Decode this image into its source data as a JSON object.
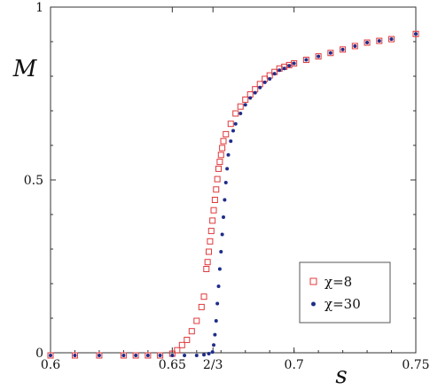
{
  "chart_data": {
    "type": "scatter",
    "xlabel": "s",
    "ylabel": "M",
    "xlim": [
      0.6,
      0.75
    ],
    "ylim": [
      0,
      1
    ],
    "x_ticks": [
      {
        "value": 0.6,
        "label": "0.6"
      },
      {
        "value": 0.65,
        "label": "0.65"
      },
      {
        "value": 0.6667,
        "label": "2/3"
      },
      {
        "value": 0.7,
        "label": "0.7"
      },
      {
        "value": 0.75,
        "label": "0.75"
      }
    ],
    "y_ticks": [
      {
        "value": 0,
        "label": "0"
      },
      {
        "value": 0.5,
        "label": "0.5"
      },
      {
        "value": 1,
        "label": "1"
      }
    ],
    "legend": {
      "placement": "bottom-right"
    },
    "series": [
      {
        "name": "χ=8",
        "marker": "square-open",
        "color": "#e0383a",
        "points": [
          [
            0.6,
            0.0
          ],
          [
            0.61,
            0.0
          ],
          [
            0.62,
            0.0
          ],
          [
            0.63,
            0.0
          ],
          [
            0.635,
            0.0
          ],
          [
            0.64,
            0.0
          ],
          [
            0.645,
            0.0
          ],
          [
            0.65,
            0.005
          ],
          [
            0.652,
            0.015
          ],
          [
            0.654,
            0.03
          ],
          [
            0.656,
            0.045
          ],
          [
            0.658,
            0.07
          ],
          [
            0.66,
            0.1
          ],
          [
            0.662,
            0.14
          ],
          [
            0.663,
            0.17
          ],
          [
            0.664,
            0.25
          ],
          [
            0.6645,
            0.27
          ],
          [
            0.665,
            0.3
          ],
          [
            0.6655,
            0.33
          ],
          [
            0.666,
            0.36
          ],
          [
            0.6665,
            0.39
          ],
          [
            0.667,
            0.42
          ],
          [
            0.6675,
            0.45
          ],
          [
            0.668,
            0.48
          ],
          [
            0.6685,
            0.51
          ],
          [
            0.669,
            0.54
          ],
          [
            0.6695,
            0.56
          ],
          [
            0.67,
            0.58
          ],
          [
            0.6705,
            0.6
          ],
          [
            0.671,
            0.62
          ],
          [
            0.672,
            0.64
          ],
          [
            0.674,
            0.67
          ],
          [
            0.676,
            0.7
          ],
          [
            0.678,
            0.72
          ],
          [
            0.68,
            0.74
          ],
          [
            0.682,
            0.755
          ],
          [
            0.684,
            0.77
          ],
          [
            0.686,
            0.785
          ],
          [
            0.688,
            0.8
          ],
          [
            0.69,
            0.81
          ],
          [
            0.692,
            0.82
          ],
          [
            0.694,
            0.83
          ],
          [
            0.696,
            0.835
          ],
          [
            0.698,
            0.84
          ],
          [
            0.7,
            0.845
          ],
          [
            0.705,
            0.855
          ],
          [
            0.71,
            0.865
          ],
          [
            0.715,
            0.875
          ],
          [
            0.72,
            0.885
          ],
          [
            0.725,
            0.895
          ],
          [
            0.73,
            0.905
          ],
          [
            0.735,
            0.91
          ],
          [
            0.74,
            0.915
          ],
          [
            0.75,
            0.93
          ]
        ]
      },
      {
        "name": "χ=30",
        "marker": "circle-filled",
        "color": "#1f2d8a",
        "points": [
          [
            0.6,
            0.0
          ],
          [
            0.61,
            0.0
          ],
          [
            0.62,
            0.0
          ],
          [
            0.63,
            0.0
          ],
          [
            0.635,
            0.0
          ],
          [
            0.64,
            0.0
          ],
          [
            0.645,
            0.0
          ],
          [
            0.65,
            0.0
          ],
          [
            0.655,
            0.0
          ],
          [
            0.66,
            0.0
          ],
          [
            0.663,
            0.002
          ],
          [
            0.665,
            0.005
          ],
          [
            0.6665,
            0.01
          ],
          [
            0.667,
            0.03
          ],
          [
            0.6675,
            0.06
          ],
          [
            0.668,
            0.1
          ],
          [
            0.6685,
            0.15
          ],
          [
            0.669,
            0.2
          ],
          [
            0.6695,
            0.25
          ],
          [
            0.67,
            0.3
          ],
          [
            0.6705,
            0.35
          ],
          [
            0.671,
            0.4
          ],
          [
            0.6715,
            0.45
          ],
          [
            0.672,
            0.5
          ],
          [
            0.6725,
            0.54
          ],
          [
            0.673,
            0.58
          ],
          [
            0.674,
            0.62
          ],
          [
            0.675,
            0.65
          ],
          [
            0.676,
            0.67
          ],
          [
            0.678,
            0.7
          ],
          [
            0.68,
            0.725
          ],
          [
            0.682,
            0.745
          ],
          [
            0.684,
            0.76
          ],
          [
            0.686,
            0.775
          ],
          [
            0.688,
            0.79
          ],
          [
            0.69,
            0.8
          ],
          [
            0.692,
            0.815
          ],
          [
            0.694,
            0.825
          ],
          [
            0.696,
            0.83
          ],
          [
            0.698,
            0.838
          ],
          [
            0.7,
            0.845
          ],
          [
            0.705,
            0.855
          ],
          [
            0.71,
            0.865
          ],
          [
            0.715,
            0.875
          ],
          [
            0.72,
            0.885
          ],
          [
            0.725,
            0.895
          ],
          [
            0.73,
            0.905
          ],
          [
            0.735,
            0.91
          ],
          [
            0.74,
            0.915
          ],
          [
            0.75,
            0.93
          ]
        ]
      }
    ]
  }
}
